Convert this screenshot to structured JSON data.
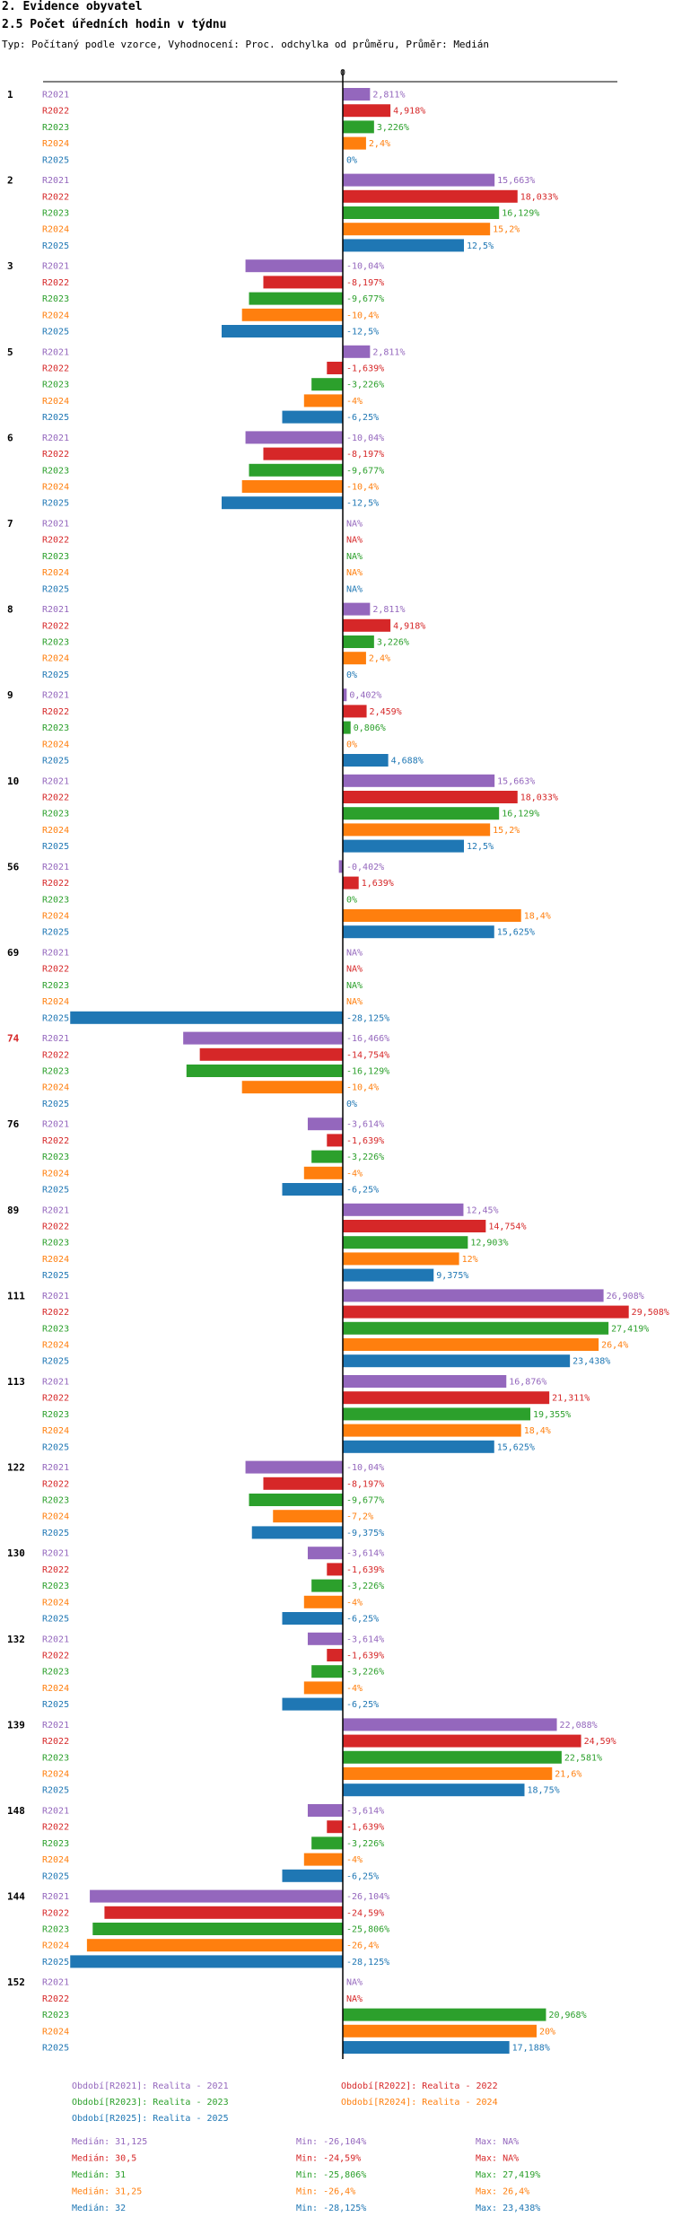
{
  "header": {
    "title": "2. Evidence obyvatel",
    "subtitle": "2.5 Počet úředních hodin v týdnu",
    "type_line": "Typ: Počítaný podle vzorce, Vyhodnocení: Proc. odchylka od průměru, Průměr: Medián"
  },
  "colors": {
    "R2021": "#9467bd",
    "R2022": "#d62728",
    "R2023": "#2ca02c",
    "R2024": "#ff7f0e",
    "R2025": "#1f77b4",
    "highlight_group": "#d62728"
  },
  "chart_data": {
    "type": "bar",
    "orientation": "horizontal",
    "zero_label": "0",
    "unit": "%",
    "na_label": "NA%",
    "xlim": [
      -30,
      30
    ],
    "series_names": [
      "R2021",
      "R2022",
      "R2023",
      "R2024",
      "R2025"
    ],
    "groups": [
      {
        "label": "1",
        "values": [
          2.811,
          4.918,
          3.226,
          2.4,
          0
        ]
      },
      {
        "label": "2",
        "values": [
          15.663,
          18.033,
          16.129,
          15.2,
          12.5
        ]
      },
      {
        "label": "3",
        "values": [
          -10.04,
          -8.197,
          -9.677,
          -10.4,
          -12.5
        ]
      },
      {
        "label": "5",
        "values": [
          2.811,
          -1.639,
          -3.226,
          -4,
          -6.25
        ]
      },
      {
        "label": "6",
        "values": [
          -10.04,
          -8.197,
          -9.677,
          -10.4,
          -12.5
        ]
      },
      {
        "label": "7",
        "values": [
          null,
          null,
          null,
          null,
          null
        ]
      },
      {
        "label": "8",
        "values": [
          2.811,
          4.918,
          3.226,
          2.4,
          0
        ]
      },
      {
        "label": "9",
        "values": [
          0.402,
          2.459,
          0.806,
          0,
          4.688
        ]
      },
      {
        "label": "10",
        "values": [
          15.663,
          18.033,
          16.129,
          15.2,
          12.5
        ]
      },
      {
        "label": "56",
        "values": [
          -0.402,
          1.639,
          0,
          18.4,
          15.625
        ]
      },
      {
        "label": "69",
        "values": [
          null,
          null,
          null,
          null,
          -28.125
        ]
      },
      {
        "label": "74",
        "values": [
          -16.466,
          -14.754,
          -16.129,
          -10.4,
          0
        ],
        "highlight": true
      },
      {
        "label": "76",
        "values": [
          -3.614,
          -1.639,
          -3.226,
          -4,
          -6.25
        ]
      },
      {
        "label": "89",
        "values": [
          12.45,
          14.754,
          12.903,
          12,
          9.375
        ]
      },
      {
        "label": "111",
        "values": [
          26.908,
          29.508,
          27.419,
          26.4,
          23.438
        ]
      },
      {
        "label": "113",
        "values": [
          16.876,
          21.311,
          19.355,
          18.4,
          15.625
        ]
      },
      {
        "label": "122",
        "values": [
          -10.04,
          -8.197,
          -9.677,
          -7.2,
          -9.375
        ]
      },
      {
        "label": "130",
        "values": [
          -3.614,
          -1.639,
          -3.226,
          -4,
          -6.25
        ]
      },
      {
        "label": "132",
        "values": [
          -3.614,
          -1.639,
          -3.226,
          -4,
          -6.25
        ]
      },
      {
        "label": "139",
        "values": [
          22.088,
          24.59,
          22.581,
          21.6,
          18.75
        ]
      },
      {
        "label": "148",
        "values": [
          -3.614,
          -1.639,
          -3.226,
          -4,
          -6.25
        ]
      },
      {
        "label": "144",
        "values": [
          -26.104,
          -24.59,
          -25.806,
          -26.4,
          -28.125
        ]
      },
      {
        "label": "152",
        "values": [
          null,
          null,
          20.968,
          20,
          17.188
        ]
      }
    ],
    "legend": [
      {
        "text": "Období[R2021]: Realita - 2021",
        "series": "R2021"
      },
      {
        "text": "Období[R2022]: Realita - 2022",
        "series": "R2022"
      },
      {
        "text": "Období[R2023]: Realita - 2023",
        "series": "R2023"
      },
      {
        "text": "Období[R2024]: Realita - 2024",
        "series": "R2024"
      },
      {
        "text": "Období[R2025]: Realita - 2025",
        "series": "R2025"
      }
    ],
    "stats": [
      {
        "series": "R2021",
        "median": "Medián: 31,125",
        "min": "Min: -26,104%",
        "max": "Max: NA%"
      },
      {
        "series": "R2022",
        "median": "Medián: 30,5",
        "min": "Min: -24,59%",
        "max": "Max: NA%"
      },
      {
        "series": "R2023",
        "median": "Medián: 31",
        "min": "Min: -25,806%",
        "max": "Max: 27,419%"
      },
      {
        "series": "R2024",
        "median": "Medián: 31,25",
        "min": "Min: -26,4%",
        "max": "Max: 26,4%"
      },
      {
        "series": "R2025",
        "median": "Medián: 32",
        "min": "Min: -28,125%",
        "max": "Max: 23,438%"
      }
    ]
  }
}
